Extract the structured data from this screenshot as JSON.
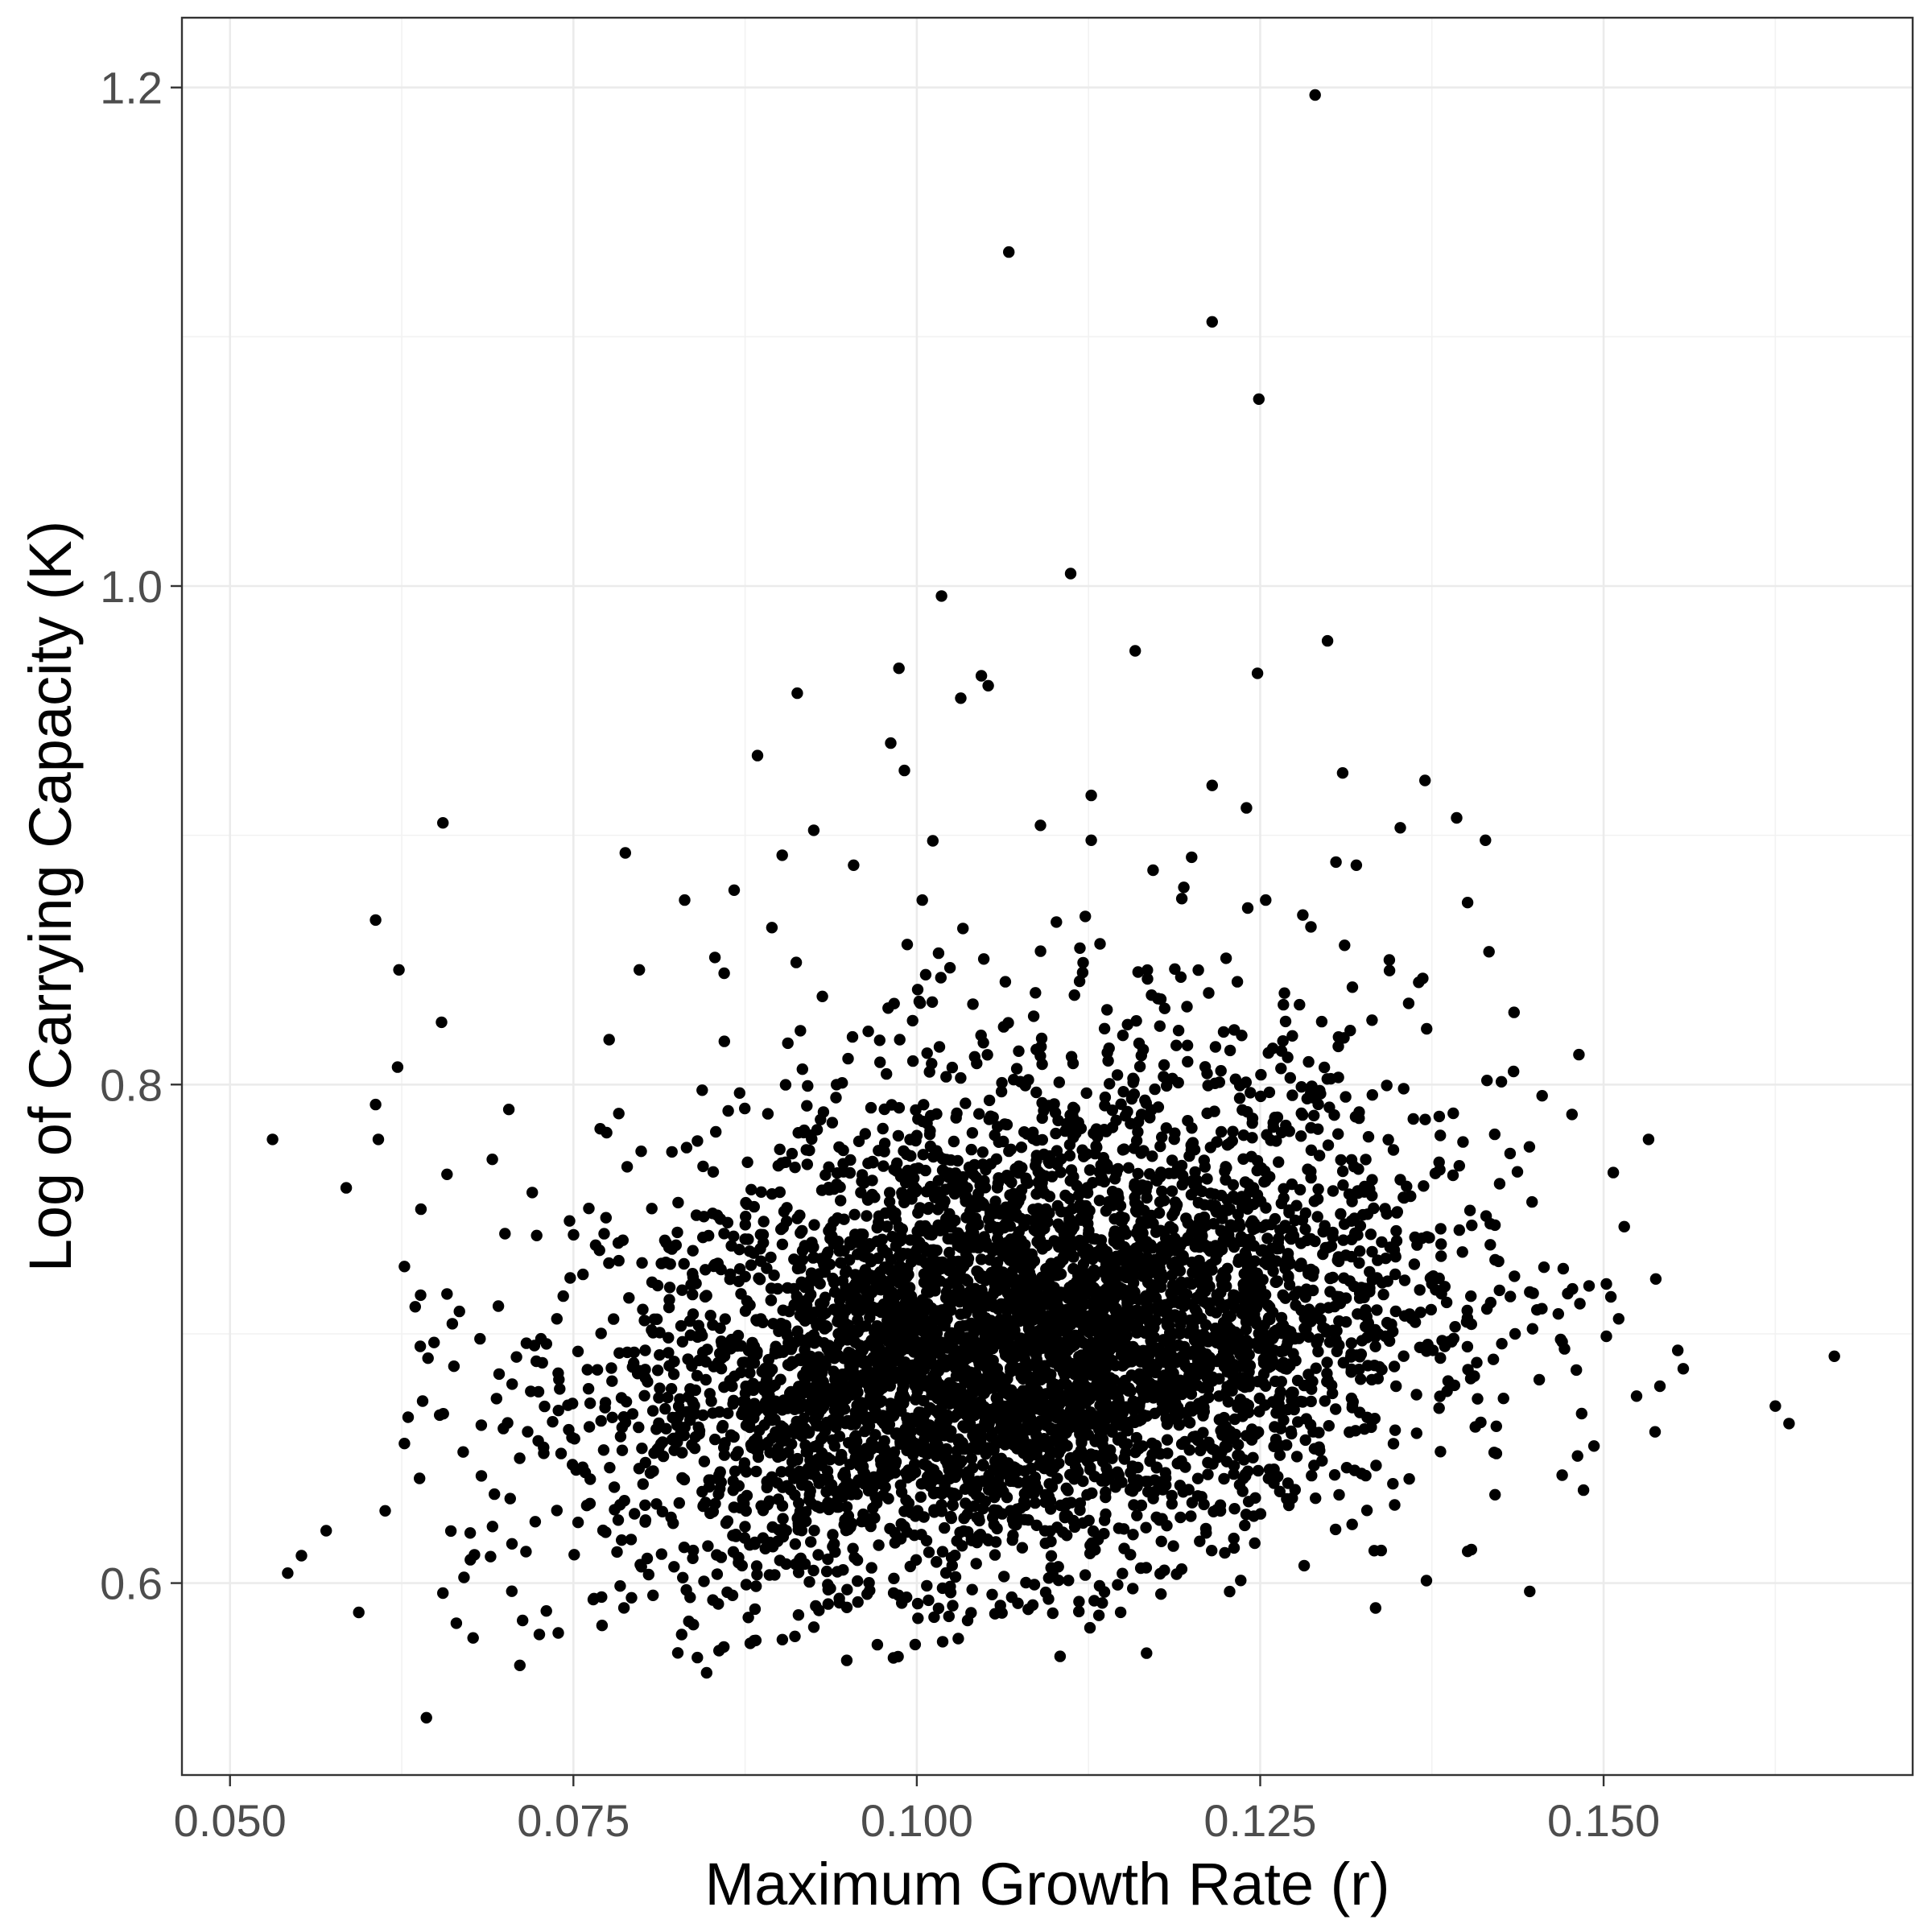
{
  "chart_data": {
    "type": "scatter",
    "title": "",
    "xlabel": "Maximum Growth Rate (r)",
    "ylabel": "Log of Carrying Capacity (K)",
    "xlim": [
      0.0465,
      0.1725
    ],
    "ylim": [
      0.523,
      1.228
    ],
    "x_ticks": [
      0.05,
      0.075,
      0.1,
      0.125,
      0.15
    ],
    "x_tick_labels": [
      "0.050",
      "0.075",
      "0.100",
      "0.125",
      "0.150"
    ],
    "y_ticks": [
      0.6,
      0.8,
      1.0,
      1.2
    ],
    "y_tick_labels": [
      "0.6",
      "0.8",
      "1.0",
      "1.2"
    ],
    "grid": true,
    "legend": "none",
    "colors": {
      "point": "#000000",
      "grid_major": "#ebebeb",
      "grid_minor": "#f2f2f2",
      "panel_border": "#333333",
      "tick_label": "#4d4d4d"
    },
    "series": [
      {
        "points": [
          [
            0.129,
            1.197
          ],
          [
            0.1067,
            1.134
          ],
          [
            0.1215,
            1.106
          ],
          [
            0.1249,
            1.075
          ],
          [
            0.1112,
            1.005
          ],
          [
            0.1018,
            0.996
          ],
          [
            0.1299,
            0.978
          ],
          [
            0.1159,
            0.974
          ],
          [
            0.0987,
            0.967
          ],
          [
            0.1047,
            0.964
          ],
          [
            0.1248,
            0.965
          ],
          [
            0.1052,
            0.96
          ],
          [
            0.1032,
            0.955
          ],
          [
            0.0913,
            0.957
          ],
          [
            0.0884,
            0.932
          ],
          [
            0.0981,
            0.937
          ],
          [
            0.131,
            0.925
          ],
          [
            0.137,
            0.922
          ],
          [
            0.1215,
            0.92
          ],
          [
            0.0991,
            0.926
          ],
          [
            0.1127,
            0.916
          ],
          [
            0.124,
            0.911
          ],
          [
            0.1393,
            0.907
          ],
          [
            0.1352,
            0.903
          ],
          [
            0.0655,
            0.905
          ],
          [
            0.109,
            0.904
          ],
          [
            0.1414,
            0.898
          ],
          [
            0.0925,
            0.902
          ],
          [
            0.1127,
            0.898
          ],
          [
            0.0902,
            0.892
          ],
          [
            0.132,
            0.888
          ],
          [
            0.0954,
            0.888
          ],
          [
            0.1172,
            0.886
          ],
          [
            0.1401,
            0.873
          ],
          [
            0.0867,
            0.878
          ],
          [
            0.1004,
            0.874
          ],
          [
            0.0831,
            0.874
          ],
          [
            0.1254,
            0.874
          ],
          [
            0.0606,
            0.866
          ],
          [
            0.1281,
            0.868
          ],
          [
            0.0623,
            0.846
          ],
          [
            0.0798,
            0.846
          ],
          [
            0.0853,
            0.851
          ],
          [
            0.1344,
            0.85
          ],
          [
            0.0654,
            0.825
          ],
          [
            0.0622,
            0.807
          ],
          [
            0.0776,
            0.818
          ],
          [
            0.0606,
            0.792
          ],
          [
            0.0531,
            0.778
          ],
          [
            0.0608,
            0.778
          ],
          [
            0.0703,
            0.79
          ],
          [
            0.0639,
            0.75
          ],
          [
            0.0658,
            0.764
          ],
          [
            0.0691,
            0.77
          ],
          [
            0.1482,
            0.812
          ],
          [
            0.1477,
            0.788
          ],
          [
            0.1515,
            0.743
          ],
          [
            0.1538,
            0.722
          ],
          [
            0.1502,
            0.72
          ],
          [
            0.1446,
            0.775
          ],
          [
            0.1668,
            0.691
          ],
          [
            0.1625,
            0.671
          ],
          [
            0.1635,
            0.664
          ],
          [
            0.1558,
            0.686
          ],
          [
            0.1541,
            0.679
          ],
          [
            0.1524,
            0.675
          ],
          [
            0.1502,
            0.699
          ],
          [
            0.1493,
            0.655
          ],
          [
            0.1481,
            0.651
          ],
          [
            0.1484,
            0.668
          ],
          [
            0.1511,
            0.706
          ],
          [
            0.1467,
            0.708
          ],
          [
            0.0542,
            0.604
          ],
          [
            0.0552,
            0.611
          ],
          [
            0.057,
            0.621
          ],
          [
            0.0613,
            0.629
          ],
          [
            0.0627,
            0.656
          ],
          [
            0.0643,
            0.546
          ],
          [
            0.0655,
            0.596
          ],
          [
            0.0677,
            0.578
          ],
          [
            0.0711,
            0.567
          ],
          [
            0.0713,
            0.585
          ],
          [
            0.0739,
            0.58
          ],
          [
            0.0638,
            0.642
          ],
          [
            0.0949,
            0.569
          ],
          [
            0.0983,
            0.57
          ],
          [
            0.0847,
            0.564
          ],
          [
            0.0826,
            0.572
          ],
          [
            0.1037,
            0.585
          ],
          [
            0.1135,
            0.592
          ],
          [
            0.1334,
            0.59
          ],
          [
            0.1371,
            0.601
          ],
          [
            0.1282,
            0.607
          ],
          [
            0.1246,
            0.616
          ],
          [
            0.1333,
            0.613
          ],
          [
            0.1062,
            0.588
          ],
          [
            0.0667,
            0.709
          ],
          [
            0.0682,
            0.698
          ],
          [
            0.0627,
            0.727
          ],
          [
            0.0694,
            0.674
          ],
          [
            0.0738,
            0.706
          ],
          [
            0.0663,
            0.687
          ],
          [
            0.0699,
            0.662
          ],
          [
            0.0658,
            0.716
          ],
          [
            0.0723,
            0.689
          ],
          [
            0.0741,
            0.652
          ],
          [
            0.0683,
            0.643
          ]
        ]
      }
    ]
  }
}
